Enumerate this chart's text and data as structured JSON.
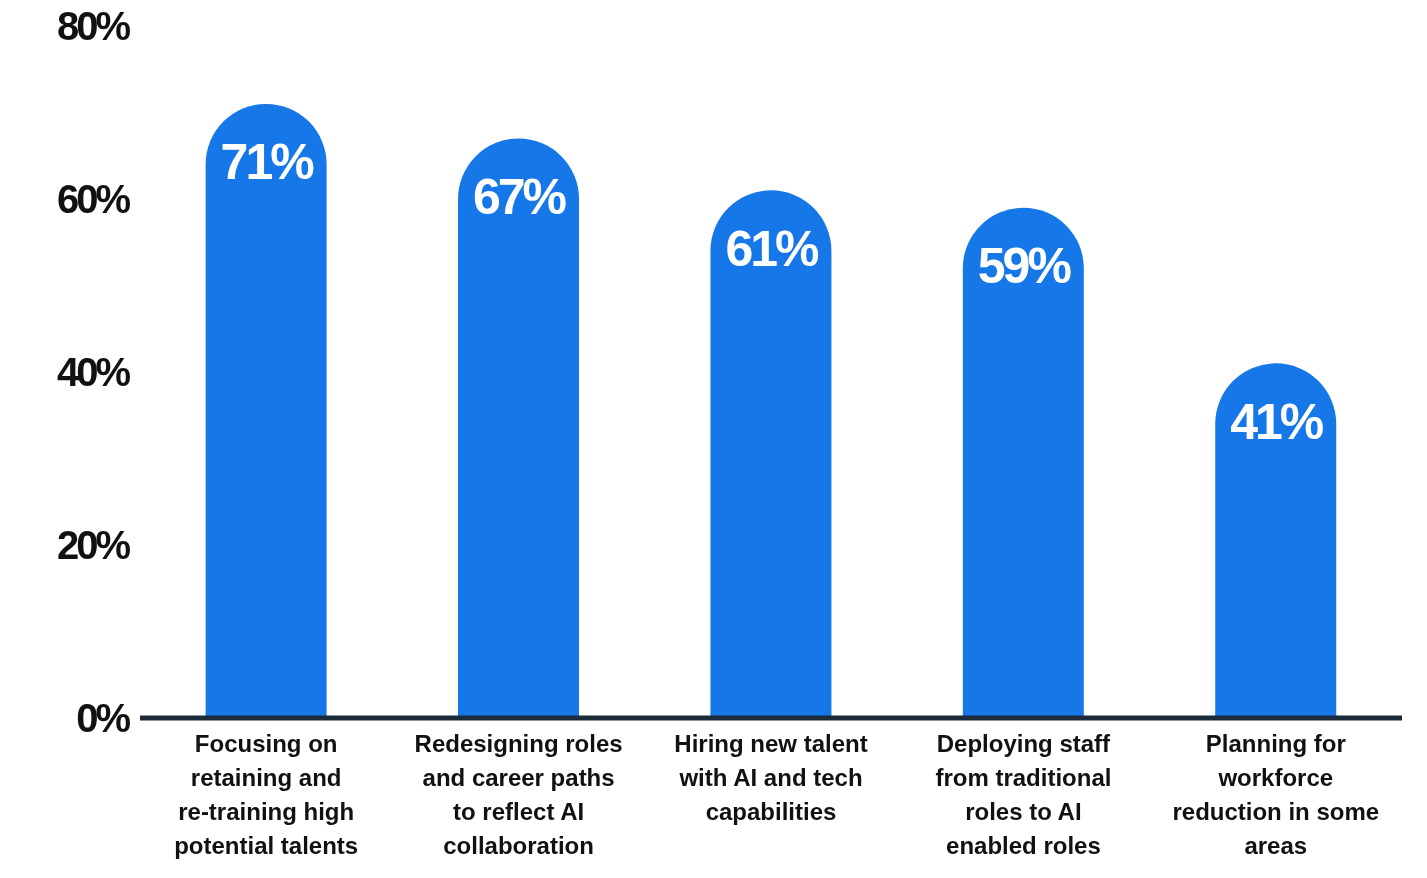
{
  "chart_data": {
    "type": "bar",
    "categories": [
      "Focusing on retaining and re-training high potential talents",
      "Redesigning roles and career paths to reflect AI collaboration",
      "Hiring new talent with AI and tech capabilities",
      "Deploying staff from traditional roles to AI enabled roles",
      "Planning for workforce reduction in some areas"
    ],
    "values": [
      71,
      67,
      61,
      59,
      41
    ],
    "value_labels": [
      "71%",
      "67%",
      "61%",
      "59%",
      "41%"
    ],
    "color": "#1677e8",
    "ylim": [
      0,
      80
    ],
    "yticks": [
      {
        "value": 0,
        "label": "0%"
      },
      {
        "value": 20,
        "label": "20%"
      },
      {
        "value": 40,
        "label": "40%"
      },
      {
        "value": 60,
        "label": "60%"
      },
      {
        "value": 80,
        "label": "80%"
      }
    ],
    "grid": false,
    "legend": false
  }
}
